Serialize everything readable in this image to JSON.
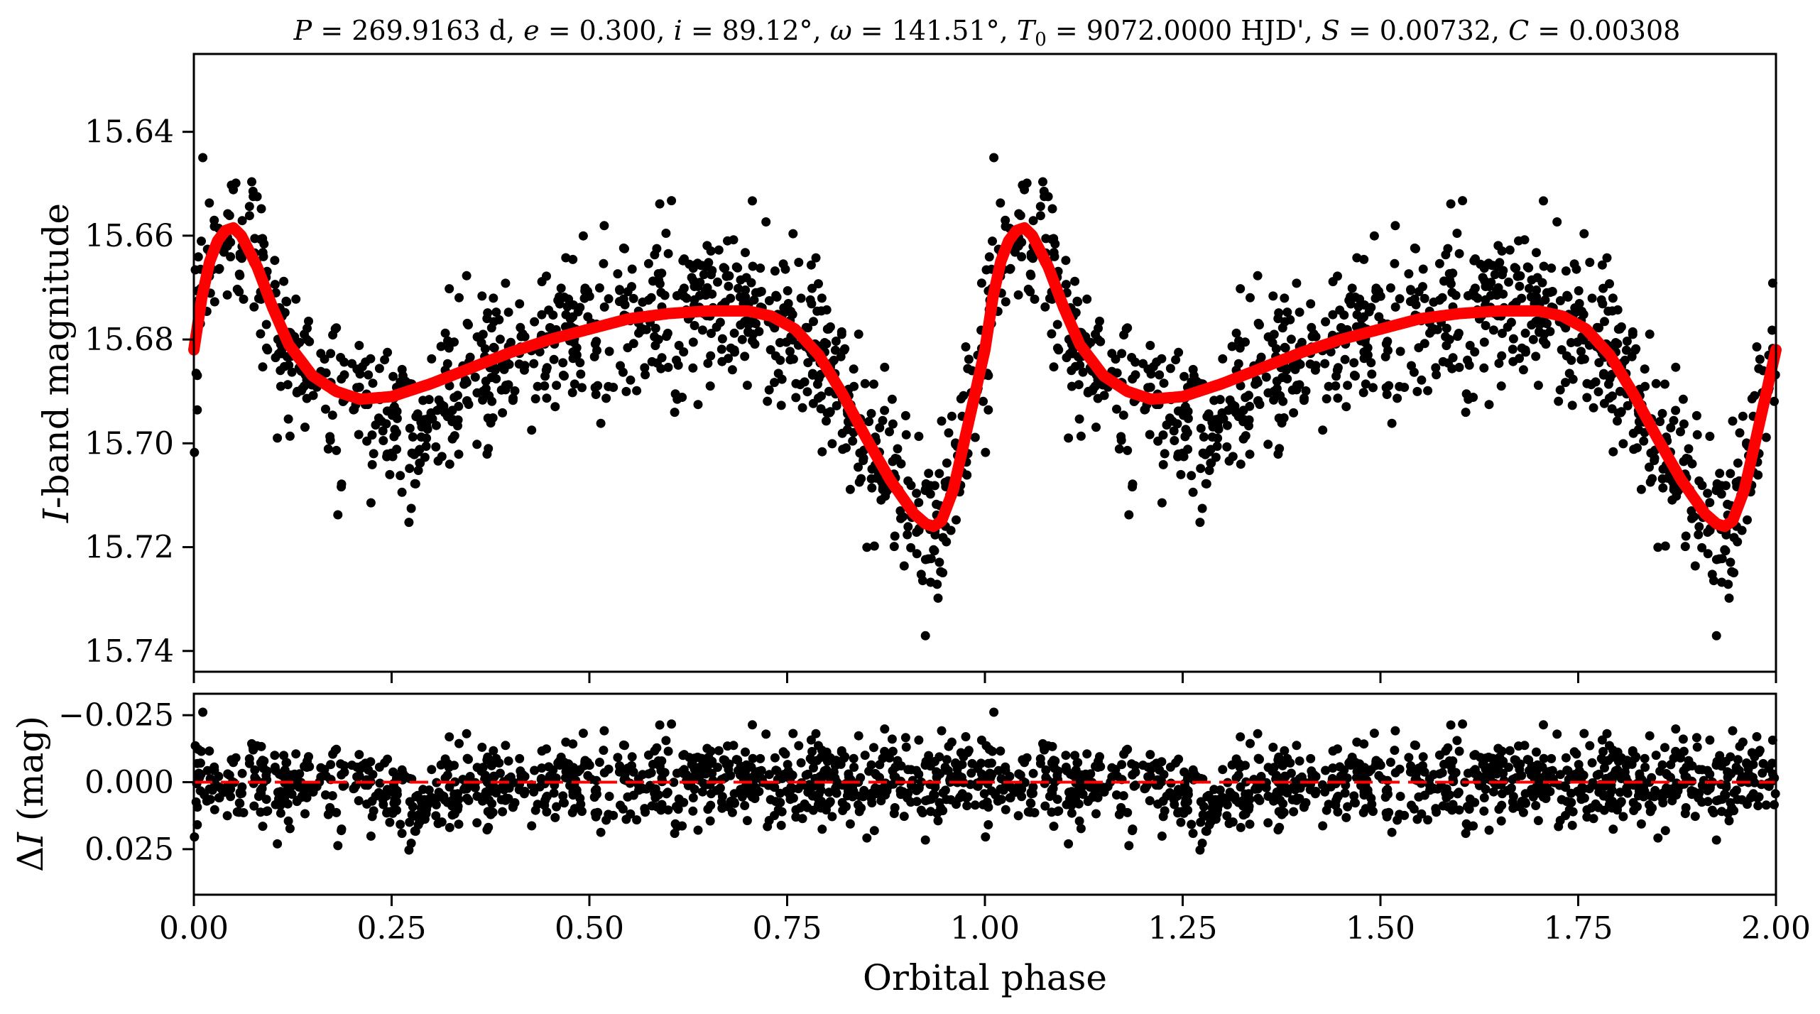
{
  "chart_data": [
    {
      "panel": "light curve",
      "type": "scatter",
      "title": "P = 269.9163 d, e = 0.300, i = 89.12°, ω = 141.51°, T0 = 9072.0000 HJD', S = 0.00732, C = 0.00308",
      "title_parts": {
        "p_sym": "P",
        "p_text": " = 269.9163 d, ",
        "e_sym": "e",
        "e_text": " = 0.300, ",
        "i_sym": "i",
        "i_text": " = 89.12°, ",
        "w_sym": "ω",
        "w_text": " = 141.51°, ",
        "t_sym": "T",
        "t_sub": "0",
        "t_text": " = 9072.0000 HJD', ",
        "s_sym": "S",
        "s_text": " = 0.00732, ",
        "c_sym": "C",
        "c_text": " = 0.00308"
      },
      "ylabel": "I-band magnitude",
      "ylabel_parts": {
        "sym": "I",
        "text": "-band magnitude"
      },
      "xlabel": "",
      "xlim": [
        0.0,
        2.0
      ],
      "ylim": [
        15.744,
        15.625
      ],
      "y_inverted": true,
      "yticks": [
        "15.64",
        "15.66",
        "15.68",
        "15.70",
        "15.72",
        "15.74"
      ],
      "grid": false,
      "series": [
        {
          "style": "black dots",
          "color": "#000000",
          "x": [
            0.0,
            0.025,
            0.05,
            0.075,
            0.1,
            0.125,
            0.15,
            0.175,
            0.2,
            0.225,
            0.25,
            0.275,
            0.3,
            0.325,
            0.35,
            0.375,
            0.4,
            0.425,
            0.45,
            0.475,
            0.5,
            0.525,
            0.55,
            0.575,
            0.6,
            0.625,
            0.65,
            0.675,
            0.7,
            0.725,
            0.75,
            0.775,
            0.8,
            0.825,
            0.85,
            0.875,
            0.9,
            0.925,
            0.95,
            0.975,
            1.0
          ],
          "y": [
            15.682,
            15.665,
            15.655,
            15.662,
            15.668,
            15.678,
            15.685,
            15.688,
            15.69,
            15.694,
            15.7,
            15.703,
            15.696,
            15.688,
            15.684,
            15.682,
            15.68,
            15.679,
            15.678,
            15.677,
            15.677,
            15.676,
            15.675,
            15.674,
            15.674,
            15.674,
            15.675,
            15.676,
            15.678,
            15.68,
            15.683,
            15.687,
            15.692,
            15.698,
            15.704,
            15.711,
            15.716,
            15.718,
            15.712,
            15.695,
            15.674
          ],
          "phase_repeat": [
            0.0,
            1.0
          ],
          "scatter_sd": 0.0075,
          "points_per_cycle": 950
        },
        {
          "style": "red model curve",
          "color": "#ff0000",
          "x": [
            0.0,
            0.01,
            0.02,
            0.03,
            0.04,
            0.05,
            0.06,
            0.08,
            0.1,
            0.12,
            0.15,
            0.18,
            0.21,
            0.25,
            0.3,
            0.35,
            0.4,
            0.45,
            0.5,
            0.55,
            0.6,
            0.65,
            0.7,
            0.73,
            0.76,
            0.79,
            0.82,
            0.85,
            0.88,
            0.91,
            0.925,
            0.935,
            0.945,
            0.96,
            0.98,
            1.0
          ],
          "y": [
            15.682,
            15.672,
            15.665,
            15.661,
            15.659,
            15.6585,
            15.66,
            15.666,
            15.674,
            15.681,
            15.687,
            15.69,
            15.6915,
            15.691,
            15.6885,
            15.6855,
            15.6825,
            15.68,
            15.678,
            15.676,
            15.675,
            15.6745,
            15.6745,
            15.6755,
            15.678,
            15.683,
            15.6905,
            15.699,
            15.707,
            15.7135,
            15.7155,
            15.716,
            15.715,
            15.709,
            15.6955,
            15.682
          ],
          "phase_repeat": [
            0.0,
            1.0
          ]
        }
      ]
    },
    {
      "panel": "residuals",
      "type": "scatter",
      "xlabel": "Orbital phase",
      "ylabel": "ΔI (mag)",
      "ylabel_parts": {
        "delta": "Δ",
        "sym": "I",
        "text": " (mag)"
      },
      "xlim": [
        0.0,
        2.0
      ],
      "xticks": [
        "0.00",
        "0.25",
        "0.50",
        "0.75",
        "1.00",
        "1.25",
        "1.50",
        "1.75",
        "2.00"
      ],
      "ylim": [
        0.042,
        -0.033
      ],
      "y_inverted": true,
      "yticks": [
        "−0.025",
        "0.000",
        "0.025"
      ],
      "grid": false,
      "series": [
        {
          "style": "black dots",
          "color": "#000000",
          "residual_sd": 0.0075,
          "phase_repeat": [
            0.0,
            1.0
          ]
        },
        {
          "style": "red dashed zero line",
          "color": "#ff0000",
          "y": 0.0
        }
      ]
    }
  ]
}
